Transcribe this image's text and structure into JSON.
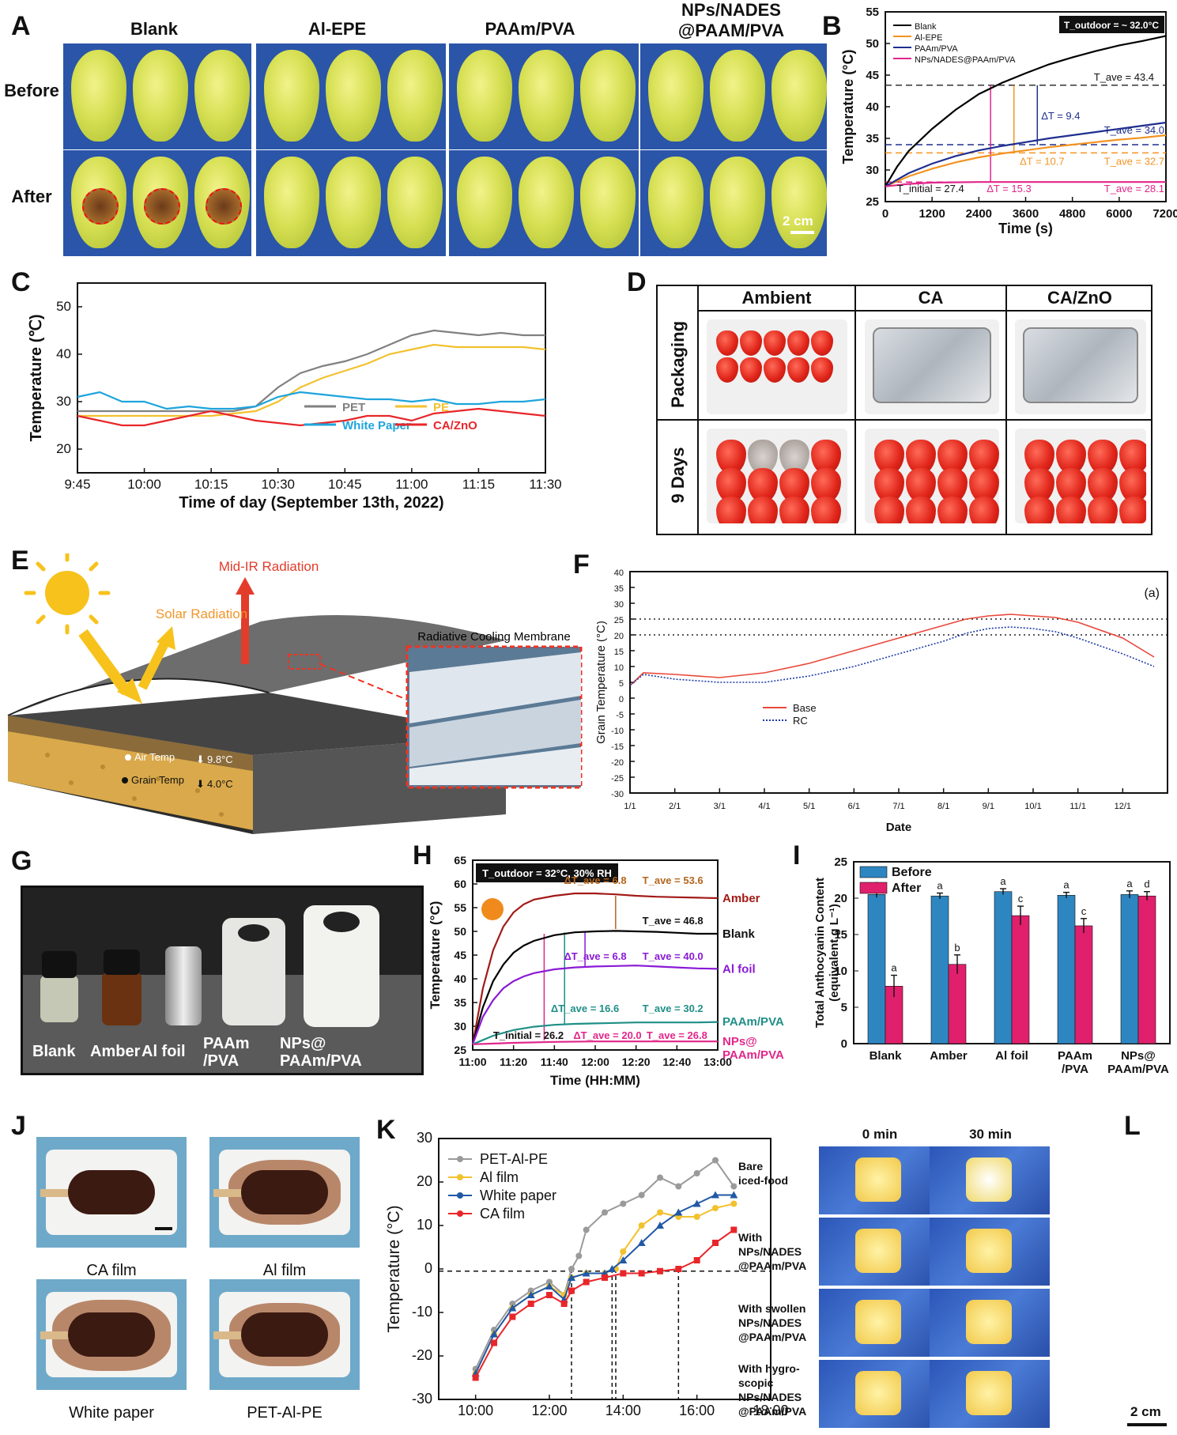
{
  "panels": {
    "A": "A",
    "B": "B",
    "C": "C",
    "D": "D",
    "E": "E",
    "F": "F",
    "G": "G",
    "H": "H",
    "I": "I",
    "J": "J",
    "K": "K",
    "L": "L"
  },
  "panel_a": {
    "columns": [
      "Blank",
      "Al-EPE",
      "PAAm/PVA",
      "NPs/NADES\n@PAAM/PVA"
    ],
    "rows": [
      "Before",
      "After"
    ],
    "scale": "2 cm"
  },
  "panel_d": {
    "columns": [
      "Ambient",
      "CA",
      "CA/ZnO"
    ],
    "rows": [
      "Packaging",
      "9 Days"
    ]
  },
  "panel_e": {
    "mid_ir": "Mid-IR Radiation",
    "solar": "Solar Radiation",
    "membrane": "Radiative Cooling Membrane",
    "air": "Air Temp",
    "air_val": "9.8°C",
    "grain": "Grain Temp",
    "grain_val": "4.0°C"
  },
  "panel_g": {
    "labels": [
      "Blank",
      "Amber",
      "Al foil",
      "PAAm\n/PVA",
      "NPs@\nPAAm/PVA"
    ]
  },
  "panel_j": {
    "captions": [
      "CA film",
      "Al film",
      "White paper",
      "PET-Al-PE"
    ]
  },
  "panel_l": {
    "cols": [
      "0 min",
      "30 min"
    ],
    "rows": [
      "Bare\niced-food",
      "With\nNPs/NADES\n@PAAm/PVA",
      "With swollen\nNPs/NADES\n@PAAm/PVA",
      "With hygro-\nscopic\nNPs/NADES\n@PAAm/PVA"
    ],
    "scale": "2 cm"
  },
  "chart_data": [
    {
      "id": "B",
      "type": "line",
      "xlabel": "Time (s)",
      "ylabel": "Temperature (°C)",
      "xlim": [
        0,
        7200
      ],
      "ylim": [
        25,
        55
      ],
      "xticks": [
        0,
        1200,
        2400,
        3600,
        4800,
        6000,
        7200
      ],
      "yticks": [
        25,
        30,
        35,
        40,
        45,
        50,
        55
      ],
      "legend": "top-left",
      "box": "T_outdoor = ~ 32.0°C",
      "series": [
        {
          "name": "Blank",
          "color": "#000000",
          "x": [
            0,
            300,
            600,
            1200,
            1800,
            2400,
            3000,
            3600,
            4200,
            4800,
            5400,
            6000,
            6600,
            7200
          ],
          "y": [
            27.4,
            30.5,
            33,
            36.5,
            39.5,
            42,
            43.8,
            45.3,
            46.7,
            47.8,
            48.8,
            49.7,
            50.4,
            51.2
          ]
        },
        {
          "name": "Al-EPE",
          "color": "#f39322",
          "x": [
            0,
            600,
            1200,
            1800,
            2400,
            3000,
            3600,
            4200,
            4800,
            5400,
            6000,
            6600,
            7200
          ],
          "y": [
            27.4,
            29,
            30.2,
            31.2,
            32,
            32.6,
            33.1,
            33.6,
            34,
            34.4,
            34.8,
            35.1,
            35.5
          ]
        },
        {
          "name": "PAAm/PVA",
          "color": "#1f2f8f",
          "x": [
            0,
            600,
            1200,
            1800,
            2400,
            3000,
            3600,
            4200,
            4800,
            5400,
            6000,
            6600,
            7200
          ],
          "y": [
            27.4,
            29.5,
            31,
            32.2,
            33.1,
            33.8,
            34.4,
            35,
            35.5,
            36,
            36.5,
            37,
            37.5
          ]
        },
        {
          "name": "NPs/NADES@PAAm/PVA",
          "color": "#e0268a",
          "x": [
            0,
            600,
            1200,
            2400,
            3600,
            4800,
            6000,
            7200
          ],
          "y": [
            27.4,
            27.8,
            28,
            28.1,
            28.1,
            28.1,
            28.1,
            28.1
          ]
        }
      ],
      "annotations": [
        "T_ave = 43.4",
        "ΔT = 9.4",
        "T_ave = 34.0",
        "ΔT = 10.7",
        "T_ave = 32.7",
        "T_initial = 27.4",
        "ΔT = 15.3",
        "T_ave = 28.1"
      ]
    },
    {
      "id": "C",
      "type": "line",
      "xlabel": "Time of day (September 13th, 2022)",
      "ylabel": "Temperature (℃)",
      "ylim": [
        15,
        55
      ],
      "xticks": [
        "9:45",
        "10:00",
        "10:15",
        "10:30",
        "10:45",
        "11:00",
        "11:15",
        "11:30"
      ],
      "yticks": [
        20,
        30,
        40,
        50
      ],
      "legend": "bottom-right",
      "series": [
        {
          "name": "PET",
          "color": "#808080",
          "x": [
            0,
            5,
            10,
            15,
            20,
            25,
            30,
            35,
            40,
            45,
            50,
            55,
            60,
            65,
            70,
            75,
            80,
            85,
            90,
            95,
            100,
            105
          ],
          "y": [
            28,
            28,
            28,
            28,
            28,
            28,
            28,
            28,
            29,
            33,
            36,
            37.5,
            38.5,
            40,
            42,
            44,
            45,
            44.5,
            44,
            44.5,
            44,
            44
          ]
        },
        {
          "name": "PE",
          "color": "#f2c12e",
          "x": [
            0,
            10,
            20,
            30,
            35,
            40,
            45,
            50,
            55,
            60,
            65,
            70,
            75,
            80,
            85,
            90,
            95,
            100,
            105
          ],
          "y": [
            27,
            27,
            27,
            27,
            27.5,
            28,
            30,
            33,
            35,
            36.5,
            38,
            40,
            41,
            42,
            41.5,
            41.5,
            41.5,
            41.5,
            41
          ]
        },
        {
          "name": "White Paper",
          "color": "#1ea4dc",
          "x": [
            0,
            5,
            10,
            15,
            20,
            25,
            30,
            35,
            40,
            45,
            50,
            55,
            60,
            65,
            70,
            75,
            80,
            85,
            90,
            95,
            100,
            105
          ],
          "y": [
            31,
            32,
            30,
            30,
            28.5,
            29,
            28.5,
            28.5,
            29,
            31,
            32,
            31.5,
            31,
            30.5,
            30.5,
            30,
            30.5,
            29.5,
            29.5,
            30,
            30,
            30.5
          ]
        },
        {
          "name": "CA/ZnO",
          "color": "#e8262a",
          "x": [
            0,
            5,
            10,
            15,
            20,
            25,
            30,
            35,
            40,
            45,
            50,
            55,
            60,
            65,
            70,
            75,
            80,
            85,
            90,
            95,
            100,
            105
          ],
          "y": [
            27,
            26,
            25,
            25,
            26,
            27,
            28,
            27,
            26,
            25.5,
            25,
            25.5,
            26,
            27,
            27,
            26,
            27.5,
            28,
            28.5,
            28,
            27.5,
            27
          ]
        }
      ]
    },
    {
      "id": "F",
      "type": "line",
      "xlabel": "Date",
      "ylabel": "Grain Temperature (°C)",
      "ylim": [
        -30,
        40
      ],
      "xticks": [
        "1/1",
        "2/1",
        "3/1",
        "4/1",
        "5/1",
        "6/1",
        "7/1",
        "8/1",
        "9/1",
        "10/1",
        "11/1",
        "12/1"
      ],
      "yticks": [
        -30,
        -25,
        -20,
        -15,
        -10,
        -5,
        0,
        5,
        10,
        15,
        20,
        25,
        30,
        35,
        40
      ],
      "legend": "center-left",
      "tag": "(a)",
      "hlines": [
        25,
        20
      ],
      "series": [
        {
          "name": "Base",
          "color": "#e8473a",
          "x": [
            0,
            0.3,
            1,
            2,
            3,
            4,
            5,
            6,
            7,
            7.5,
            8,
            8.5,
            9,
            9.5,
            10,
            11,
            11.7
          ],
          "y": [
            4,
            8,
            7.5,
            6.5,
            8,
            11,
            15,
            19,
            23,
            25,
            26,
            26.5,
            26,
            25.5,
            24,
            19,
            13
          ]
        },
        {
          "name": "RC",
          "color": "#1c3aa6",
          "x": [
            0,
            0.3,
            1,
            2,
            3,
            4,
            5,
            6,
            7,
            7.5,
            8,
            8.5,
            9,
            9.5,
            10,
            11,
            11.7
          ],
          "y": [
            4,
            7.5,
            6,
            5,
            5,
            7,
            10,
            14,
            18,
            20.5,
            22,
            22.5,
            22,
            21,
            19,
            14,
            10
          ]
        }
      ]
    },
    {
      "id": "H",
      "type": "line",
      "xlabel": "Time (HH:MM)",
      "ylabel": "Temperature (°C)",
      "ylim": [
        25,
        65
      ],
      "xticks": [
        "11:00",
        "11:20",
        "11:40",
        "12:00",
        "12:20",
        "12:40",
        "13:00"
      ],
      "yticks": [
        25,
        30,
        35,
        40,
        45,
        50,
        55,
        60,
        65
      ],
      "box": "T_outdoor = 32°C, 30% RH",
      "series": [
        {
          "name": "Amber",
          "color": "#a11a17",
          "x": [
            0,
            5,
            10,
            15,
            20,
            25,
            30,
            40,
            50,
            60,
            70,
            80,
            90,
            100,
            110,
            120
          ],
          "y": [
            26.2,
            38,
            46,
            51,
            54,
            55.7,
            56.7,
            57.5,
            58,
            58,
            57.8,
            57.5,
            57.3,
            57.2,
            57.1,
            57
          ]
        },
        {
          "name": "Blank",
          "color": "#000000",
          "x": [
            0,
            5,
            10,
            15,
            20,
            25,
            30,
            40,
            50,
            60,
            70,
            80,
            90,
            100,
            110,
            120
          ],
          "y": [
            26.2,
            34,
            39.5,
            43,
            45.5,
            47,
            48,
            49.2,
            49.8,
            50,
            50.1,
            50,
            49.9,
            49.7,
            49.5,
            49.5
          ]
        },
        {
          "name": "Al foil",
          "color": "#8a1ad6",
          "x": [
            0,
            5,
            10,
            15,
            20,
            25,
            30,
            40,
            50,
            60,
            70,
            80,
            90,
            100,
            110,
            120
          ],
          "y": [
            26.2,
            32,
            35.5,
            38,
            39.5,
            40.5,
            41.2,
            42,
            42.4,
            42.6,
            42.7,
            42.8,
            42.6,
            42.4,
            42.2,
            42.1
          ]
        },
        {
          "name": "PAAm/PVA",
          "color": "#1f8f87",
          "x": [
            0,
            10,
            20,
            30,
            40,
            50,
            60,
            70,
            80,
            90,
            100,
            110,
            120
          ],
          "y": [
            26.2,
            28,
            29.2,
            29.9,
            30.3,
            30.5,
            30.6,
            30.7,
            30.8,
            30.8,
            30.8,
            30.8,
            30.9
          ]
        },
        {
          "name": "NPs@PAAm/PVA",
          "color": "#e0268a",
          "x": [
            0,
            20,
            40,
            60,
            80,
            100,
            120
          ],
          "y": [
            26.2,
            26.5,
            26.7,
            26.8,
            26.8,
            26.8,
            26.8
          ]
        }
      ],
      "annotations": [
        "ΔT_ave = 6.8",
        "T_ave = 53.6",
        "T_ave = 46.8",
        "ΔT_ave = 6.8",
        "T_ave = 40.0",
        "ΔT_ave = 16.6",
        "T_ave = 30.2",
        "T_initial = 26.2",
        "ΔT_ave = 20.0",
        "T_ave = 26.8"
      ],
      "end_labels": [
        "Amber",
        "Blank",
        "Al foil",
        "PAAm/PVA",
        "NPs@\nPAAm/PVA"
      ]
    },
    {
      "id": "I",
      "type": "bar",
      "ylabel": "Total Anthocyanin Content\n(equivalent g L⁻¹)",
      "ylim": [
        0,
        25
      ],
      "yticks": [
        0,
        5,
        10,
        15,
        20,
        25
      ],
      "categories": [
        "Blank",
        "Amber",
        "Al foil",
        "PAAm\n/PVA",
        "NPs@\nPAAm/PVA"
      ],
      "legend": "top-left",
      "series": [
        {
          "name": "Before",
          "color": "#2e86c1",
          "values": [
            20.5,
            20.3,
            20.9,
            20.4,
            20.5
          ],
          "errors": [
            0.4,
            0.4,
            0.4,
            0.4,
            0.5
          ],
          "letters": [
            "a",
            "a",
            "a",
            "a",
            "a"
          ]
        },
        {
          "name": "After",
          "color": "#e0206c",
          "values": [
            7.9,
            10.9,
            17.6,
            16.2,
            20.3
          ],
          "errors": [
            1.5,
            1.3,
            1.3,
            1.0,
            0.6
          ],
          "letters": [
            "a",
            "b",
            "c",
            "c",
            "d"
          ]
        }
      ]
    },
    {
      "id": "K",
      "type": "line",
      "xlabel": "",
      "ylabel": "Temperature (°C)",
      "xlim": [
        9,
        18
      ],
      "ylim": [
        -30,
        30
      ],
      "xticks": [
        "10:00",
        "12:00",
        "14:00",
        "16:00",
        "18:00"
      ],
      "yticks": [
        -30,
        -20,
        -10,
        0,
        10,
        20,
        30
      ],
      "legend": "top-left",
      "series": [
        {
          "name": "PET-Al-PE",
          "color": "#9a9a9a",
          "x": [
            10,
            10.5,
            11,
            11.5,
            12,
            12.4,
            12.6,
            12.8,
            13,
            13.5,
            14,
            14.5,
            15,
            15.5,
            16,
            16.5,
            17
          ],
          "y": [
            -23,
            -14,
            -8,
            -5,
            -3,
            -6,
            0,
            3,
            9,
            13,
            15,
            17,
            21,
            19,
            22,
            25,
            19
          ]
        },
        {
          "name": "Al film",
          "color": "#f2c12e",
          "x": [
            10,
            10.5,
            11,
            11.5,
            12,
            12.4,
            12.6,
            13,
            13.5,
            13.8,
            14,
            14.5,
            15,
            15.5,
            16,
            16.5,
            17
          ],
          "y": [
            -24,
            -15,
            -9,
            -6,
            -4,
            -6,
            -2,
            -1,
            -1,
            0,
            4,
            10,
            13,
            12,
            12,
            14,
            15
          ]
        },
        {
          "name": "White paper",
          "color": "#2159a6",
          "x": [
            10,
            10.5,
            11,
            11.5,
            12,
            12.4,
            12.6,
            13,
            13.5,
            13.7,
            14,
            14.5,
            15,
            15.5,
            16,
            16.5,
            17
          ],
          "y": [
            -24,
            -15,
            -9,
            -6,
            -4,
            -7,
            -2,
            -1,
            -1,
            0,
            2,
            6,
            10,
            13,
            15,
            17,
            17
          ]
        },
        {
          "name": "CA film",
          "color": "#e8262a",
          "x": [
            10,
            10.5,
            11,
            11.5,
            12,
            12.4,
            12.6,
            13,
            13.5,
            14,
            14.5,
            15,
            15.5,
            16,
            16.5,
            17
          ],
          "y": [
            -25,
            -17,
            -11,
            -8,
            -6,
            -8,
            -5,
            -3,
            -2,
            -1,
            -1,
            -0.5,
            0,
            2,
            6,
            9
          ]
        }
      ]
    }
  ]
}
